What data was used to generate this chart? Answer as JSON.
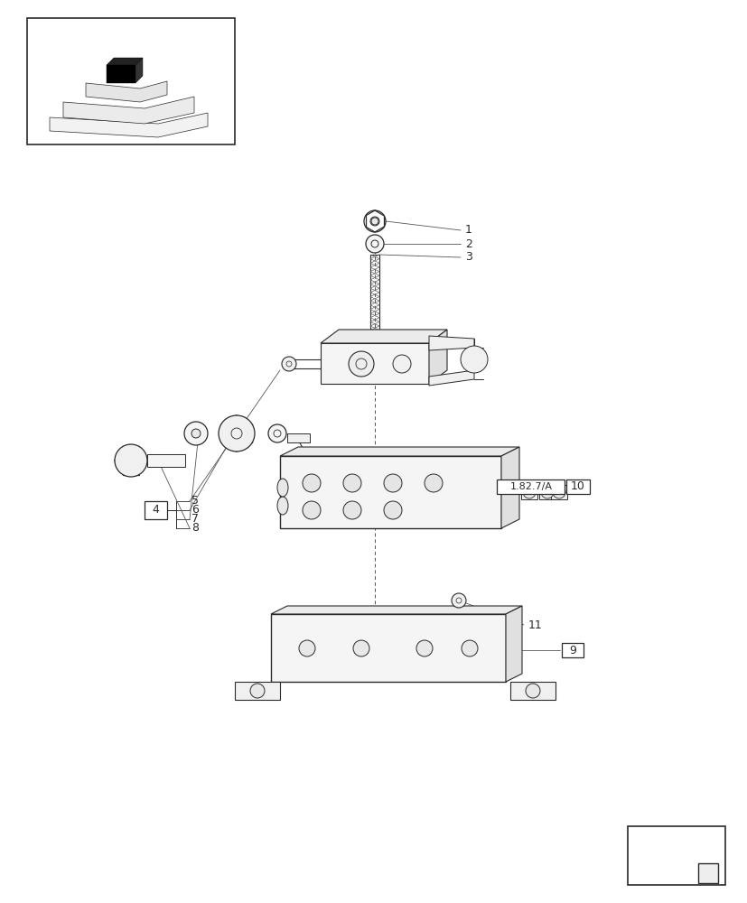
{
  "bg_color": "#ffffff",
  "lc": "#2a2a2a",
  "llc": "#aaaaaa",
  "fig_width": 8.28,
  "fig_height": 10.0,
  "dpi": 100
}
